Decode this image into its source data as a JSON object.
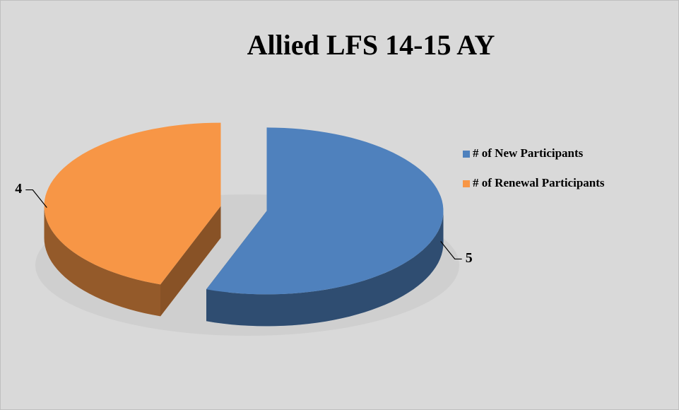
{
  "chart_data": {
    "type": "pie",
    "title": "Allied LFS 14-15 AY",
    "categories": [
      "# of New Participants",
      "# of Renewal Participants"
    ],
    "values": [
      5,
      4
    ],
    "colors": [
      "#4f81bd",
      "#f79646"
    ],
    "legend": "right"
  }
}
